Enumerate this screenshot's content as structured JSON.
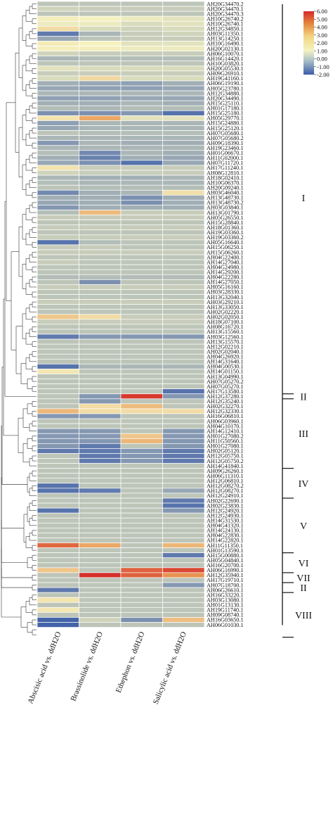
{
  "chart_data": {
    "type": "heatmap",
    "columns": [
      "Abscisic acid vs. ddH2O",
      "Brassinolide vs. ddH2O",
      "Ethephon vs. ddH2O",
      "Salicylic acid vs. ddH2O"
    ],
    "rows": [
      "AH20G34470.2",
      "AH20G34470.1",
      "AH20G34470.3",
      "AH10G26740.2",
      "AH10G26740.1",
      "AH12G34850.1",
      "AH03G11350.1",
      "AH13G14250.1",
      "AH10G16490.1",
      "AH20G02130.1",
      "AH06G10070.1",
      "AH16G14420.1",
      "AH10G03820.1",
      "AH20G05530.1",
      "AH09G26910.1",
      "AH19G41160.1",
      "AH06G19190.1",
      "AH05G23780.1",
      "AH12G34880.1",
      "AH20G34490.1",
      "AH15G25110.1",
      "AH01G17180.1",
      "AH15G25180.1",
      "AH05G29770.1",
      "AH15G24880.1",
      "AH15G25120.1",
      "AH07G05680.1",
      "AH07G05680.2",
      "AH09G18390.1",
      "AH19G23460.1",
      "AH01G06670.1",
      "AH11G02000.1",
      "AH07G11720.1",
      "AH17G11240.1",
      "AH08G12810.1",
      "AH18G02410.1",
      "AH10G06370.1",
      "AH20G09240.1",
      "AH03G46040.1",
      "AH13G48730.1",
      "AH13G48730.2",
      "AH03G03840.1",
      "AH13G01790.1",
      "AH05G26550.1",
      "AH15G28840.1",
      "AH18G01360.1",
      "AH19G03360.1",
      "AH19G03360.2",
      "AH05G16640.1",
      "AH15G06250.1",
      "AH15G06260.1",
      "AH04G22400.1",
      "AH14G27040.1",
      "AH04G24980.1",
      "AH14G29200.1",
      "AH04G22280.1",
      "AH14G27050.1",
      "AH05G16160.1",
      "AH03G28330.1",
      "AH13G32040.1",
      "AH03G29210.1",
      "AH13G33050.1",
      "AH02G02220.1",
      "AH02G02050.1",
      "AH18G07100.1",
      "AH08G16720.1",
      "AH13G15560.1",
      "AH03G12560.1",
      "AH13G15570.1",
      "AH12G02210.1",
      "AH02G02040.1",
      "AH04G26920.1",
      "AH14G31640.1",
      "AH04G00530.1",
      "AH14G01150.1",
      "AH13G04990.1",
      "AH07G05270.2",
      "AH07G05270.1",
      "AH17G13580.1",
      "AH12G37280.1",
      "AH12G35240.1",
      "AH02G32270.1",
      "AH12G32330.1",
      "AH16G06810.1",
      "AH06G03960.1",
      "AH04G10170.1",
      "AH14G12410.1",
      "AH01G27080.2",
      "AH11G50560.1",
      "AH01G27080.1",
      "AH02G05120.1",
      "AH12G05750.1",
      "AH12G05750.2",
      "AH14G41840.1",
      "AH09G26260.1",
      "AH06G11310.1",
      "AH12G06810.1",
      "AH12G08270.2",
      "AH12G08270.1",
      "AH12G24910.1",
      "AH02G22690.1",
      "AH02G23830.1",
      "AH12G24920.1",
      "AH12G24930.1",
      "AH14G31530.1",
      "AH04G41320.1",
      "AH14G24130.1",
      "AH04G22830.1",
      "AH14G22820.1",
      "AH11G11350.1",
      "AH01G13590.1",
      "AH15G00880.1",
      "AH05G04840.1",
      "AH16G20700.1",
      "AH06G16990.1",
      "AH12G35940.1",
      "AH17G19710.1",
      "AH07G18700.1",
      "AH06G26610.1",
      "AH16G33220.1",
      "AH03G13080.1",
      "AH01G13130.1",
      "AH19G11740.1",
      "AH09G08740.1",
      "AH16G03650.1",
      "AH06G01030.1"
    ],
    "values": [
      [
        -0.6,
        -0.6,
        -0.6,
        -0.6
      ],
      [
        -0.4,
        -0.5,
        -0.5,
        -0.5
      ],
      [
        -0.6,
        -0.6,
        -0.6,
        -0.6
      ],
      [
        0.1,
        0.0,
        -0.1,
        -0.2
      ],
      [
        -0.1,
        -0.1,
        -0.3,
        -0.2
      ],
      [
        0.6,
        -0.3,
        -0.4,
        -0.3
      ],
      [
        -1.6,
        -0.8,
        -0.5,
        -0.4
      ],
      [
        -1.0,
        -0.6,
        -0.5,
        -0.5
      ],
      [
        0.2,
        0.0,
        -0.2,
        -0.2
      ],
      [
        0.1,
        0.1,
        -0.1,
        -0.1
      ],
      [
        -0.4,
        -0.5,
        -0.5,
        -0.5
      ],
      [
        -0.8,
        -0.7,
        -0.7,
        -0.7
      ],
      [
        -0.6,
        -0.6,
        -0.6,
        -0.6
      ],
      [
        -0.2,
        -0.3,
        -0.3,
        -0.3
      ],
      [
        -0.5,
        -0.5,
        -0.5,
        -0.5
      ],
      [
        -0.3,
        0.7,
        -0.3,
        -0.3
      ],
      [
        -0.9,
        -1.0,
        -1.1,
        -0.9
      ],
      [
        -1.0,
        -1.1,
        -1.1,
        -1.0
      ],
      [
        -0.8,
        -0.8,
        -0.8,
        -0.8
      ],
      [
        -1.1,
        -1.1,
        -1.0,
        -1.0
      ],
      [
        -0.9,
        -0.9,
        -0.8,
        -0.9
      ],
      [
        -0.7,
        -0.8,
        -0.7,
        -0.7
      ],
      [
        -1.3,
        -1.3,
        -1.2,
        -1.7
      ],
      [
        0.4,
        2.0,
        -0.2,
        -0.2
      ],
      [
        -1.1,
        -0.8,
        -0.8,
        -0.8
      ],
      [
        -1.0,
        -0.8,
        -0.8,
        -0.8
      ],
      [
        -0.6,
        -0.7,
        -0.7,
        -0.7
      ],
      [
        -0.8,
        -0.8,
        -0.8,
        -0.8
      ],
      [
        -1.2,
        -0.8,
        -0.9,
        -0.9
      ],
      [
        -0.8,
        -0.8,
        -0.8,
        -0.8
      ],
      [
        -0.7,
        -1.4,
        -0.8,
        -0.9
      ],
      [
        -0.9,
        -1.5,
        -0.9,
        -1.0
      ],
      [
        -1.0,
        -1.3,
        -1.7,
        -1.0
      ],
      [
        0.4,
        -0.5,
        -0.5,
        -0.5
      ],
      [
        -0.4,
        -0.5,
        -0.5,
        -0.5
      ],
      [
        -0.8,
        -0.9,
        -0.9,
        -0.8
      ],
      [
        -0.7,
        -0.8,
        -0.8,
        -0.8
      ],
      [
        -0.6,
        -0.7,
        -0.7,
        -0.7
      ],
      [
        -1.4,
        -0.9,
        -0.8,
        0.5
      ],
      [
        -0.9,
        -0.9,
        -1.3,
        -0.9
      ],
      [
        -1.0,
        -0.9,
        -1.3,
        -0.9
      ],
      [
        -1.2,
        -0.9,
        -0.9,
        -0.9
      ],
      [
        -0.7,
        1.5,
        -0.5,
        -0.5
      ],
      [
        -0.5,
        -0.5,
        -0.5,
        -0.5
      ],
      [
        -0.6,
        -0.6,
        -0.6,
        -0.6
      ],
      [
        -0.5,
        -0.5,
        -0.5,
        -0.5
      ],
      [
        -0.6,
        -0.6,
        -0.6,
        -0.6
      ],
      [
        -0.5,
        -0.5,
        -0.5,
        -0.5
      ],
      [
        -1.7,
        -0.7,
        -0.6,
        -0.6
      ],
      [
        -0.5,
        -0.5,
        -0.6,
        -0.6
      ],
      [
        -0.5,
        -0.5,
        -0.5,
        -0.5
      ],
      [
        -0.6,
        -0.6,
        -0.6,
        -0.6
      ],
      [
        -0.5,
        -0.6,
        -0.6,
        -0.6
      ],
      [
        -0.6,
        -0.6,
        -0.6,
        -0.6
      ],
      [
        -0.6,
        -0.6,
        -0.6,
        -0.6
      ],
      [
        -0.7,
        -0.7,
        -0.7,
        -0.7
      ],
      [
        -0.6,
        -1.3,
        -0.6,
        -0.6
      ],
      [
        -0.5,
        -0.5,
        -0.5,
        -0.5
      ],
      [
        -0.6,
        -0.6,
        -0.6,
        -0.6
      ],
      [
        -0.6,
        -0.6,
        -0.6,
        -0.6
      ],
      [
        -0.5,
        -0.5,
        -0.5,
        -0.5
      ],
      [
        -0.6,
        -0.6,
        -0.6,
        -0.6
      ],
      [
        -0.6,
        -0.6,
        -0.6,
        -0.6
      ],
      [
        1.2,
        0.6,
        -0.5,
        -0.5
      ],
      [
        -0.5,
        -0.5,
        -0.5,
        -0.5
      ],
      [
        -0.6,
        -0.6,
        -0.6,
        -0.6
      ],
      [
        -0.6,
        -0.6,
        -0.6,
        -0.6
      ],
      [
        -1.6,
        -1.2,
        -1.2,
        -1.2
      ],
      [
        -0.6,
        -0.6,
        -0.6,
        -0.6
      ],
      [
        -0.6,
        -0.6,
        -0.6,
        -0.6
      ],
      [
        -0.6,
        -0.6,
        -0.6,
        -0.6
      ],
      [
        -0.6,
        -0.6,
        -0.6,
        -0.6
      ],
      [
        -0.6,
        -0.6,
        -0.6,
        -0.6
      ],
      [
        -1.7,
        -0.8,
        -0.8,
        -0.8
      ],
      [
        0.3,
        -0.6,
        -0.6,
        -0.6
      ],
      [
        -0.6,
        -0.6,
        -0.6,
        -0.6
      ],
      [
        -0.6,
        -0.6,
        -0.6,
        -0.6
      ],
      [
        -0.6,
        -0.6,
        -0.6,
        -0.6
      ],
      [
        -0.6,
        -0.6,
        -0.6,
        -1.7
      ],
      [
        -0.6,
        -1.2,
        5.5,
        -1.2
      ],
      [
        -0.6,
        -1.2,
        -0.6,
        -0.6
      ],
      [
        -0.6,
        0.6,
        1.5,
        -0.6
      ],
      [
        1.6,
        0.6,
        0.6,
        0.6
      ],
      [
        -1.2,
        -1.2,
        -0.6,
        -0.6
      ],
      [
        -0.6,
        -0.6,
        -0.6,
        -0.6
      ],
      [
        -0.6,
        -0.6,
        -0.6,
        -0.6
      ],
      [
        -1.2,
        -1.2,
        -0.6,
        -1.2
      ],
      [
        -1.2,
        -1.2,
        1.2,
        -1.2
      ],
      [
        -1.2,
        -1.2,
        1.6,
        -1.2
      ],
      [
        -1.2,
        -1.6,
        -0.6,
        -1.2
      ],
      [
        -1.6,
        -1.6,
        -1.2,
        -1.6
      ],
      [
        -0.6,
        -1.6,
        -1.2,
        -1.6
      ],
      [
        -0.6,
        -1.6,
        -1.2,
        -1.6
      ],
      [
        -0.6,
        -0.6,
        -0.6,
        -0.6
      ],
      [
        -0.6,
        -0.6,
        -0.6,
        -0.6
      ],
      [
        -0.6,
        -0.6,
        -0.6,
        -0.6
      ],
      [
        -0.6,
        -0.6,
        -0.6,
        -0.6
      ],
      [
        -1.7,
        -0.6,
        -0.6,
        -0.6
      ],
      [
        -1.7,
        -1.6,
        -0.6,
        -1.0
      ],
      [
        -0.6,
        -0.6,
        -0.6,
        -0.6
      ],
      [
        -0.6,
        -0.6,
        -0.6,
        -1.6
      ],
      [
        -0.6,
        -0.6,
        -0.6,
        -1.7
      ],
      [
        -1.7,
        -0.6,
        -0.6,
        -1.2
      ],
      [
        -0.6,
        -0.6,
        -0.6,
        -0.6
      ],
      [
        -0.6,
        -0.6,
        -0.6,
        -0.6
      ],
      [
        -0.6,
        -0.6,
        -0.6,
        -0.6
      ],
      [
        -0.6,
        -0.6,
        -0.6,
        -0.6
      ],
      [
        -0.6,
        -0.6,
        -0.6,
        -0.6
      ],
      [
        -0.6,
        -0.6,
        -0.6,
        -0.6
      ],
      [
        4.0,
        2.0,
        -0.6,
        1.6
      ],
      [
        -0.6,
        -0.6,
        -0.6,
        -0.6
      ],
      [
        -0.6,
        -0.6,
        -0.6,
        -1.6
      ],
      [
        -0.6,
        -0.6,
        -0.6,
        -0.6
      ],
      [
        -0.6,
        -0.6,
        -0.6,
        -0.6
      ],
      [
        1.2,
        -0.6,
        4.2,
        5.0
      ],
      [
        -0.6,
        5.8,
        4.2,
        2.6
      ],
      [
        -0.6,
        -0.6,
        -0.6,
        -0.6
      ],
      [
        -0.6,
        -0.6,
        -0.6,
        -1.2
      ],
      [
        -1.6,
        -0.6,
        -0.6,
        -0.6
      ],
      [
        -0.6,
        -0.6,
        -0.6,
        -0.6
      ],
      [
        0.4,
        -0.6,
        -0.6,
        -0.6
      ],
      [
        -0.6,
        -0.6,
        -0.6,
        -0.6
      ],
      [
        0.3,
        -0.6,
        -0.6,
        -0.6
      ],
      [
        -0.6,
        -0.6,
        -0.6,
        -0.6
      ],
      [
        -1.9,
        -0.4,
        -1.3,
        1.4
      ],
      [
        -1.9,
        -0.6,
        -0.6,
        -0.6
      ]
    ],
    "legend": {
      "ticks": [
        "6.00",
        "5.00",
        "4.00",
        "3.00",
        "2.00",
        "1.00",
        "0.00",
        "-1.00",
        "-2.00"
      ],
      "min": -2,
      "max": 6
    },
    "colors": {
      "low": "#3b5ca8",
      "mid": "#f5f2c0",
      "high": "#d42a2a"
    },
    "groups": [
      {
        "label": "I",
        "first_row": 0,
        "last_row": 78
      },
      {
        "label": "II",
        "first_row": 79,
        "last_row": 79
      },
      {
        "label": "III",
        "first_row": 80,
        "last_row": 93
      },
      {
        "label": "IV",
        "first_row": 94,
        "last_row": 99
      },
      {
        "label": "V",
        "first_row": 100,
        "last_row": 110
      },
      {
        "label": "VI",
        "first_row": 111,
        "last_row": 114
      },
      {
        "label": "VII",
        "first_row": 115,
        "last_row": 116
      },
      {
        "label": "II",
        "first_row": 117,
        "last_row": 118
      },
      {
        "label": "VIII",
        "first_row": 119,
        "last_row": 127
      }
    ]
  }
}
